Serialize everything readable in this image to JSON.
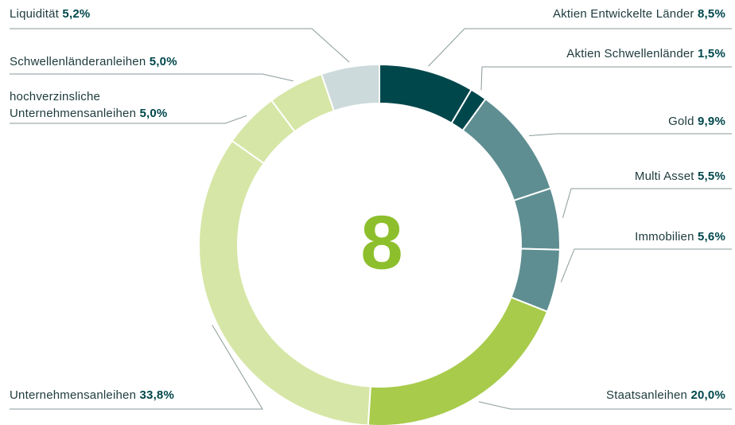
{
  "chart_data": {
    "type": "donut",
    "center_label": "8",
    "categories": [
      "Aktien Entwickelte Länder",
      "Aktien Schwellenländer",
      "Gold",
      "Multi Asset",
      "Immobilien",
      "Staatsanleihen",
      "Unternehmensanleihen",
      "hochverzinsliche Unternehmensanleihen",
      "Schwellenländeranleihen",
      "Liquidität"
    ],
    "values": [
      8.5,
      1.5,
      9.9,
      5.5,
      5.6,
      20.0,
      33.8,
      5.0,
      5.0,
      5.2
    ],
    "value_labels": [
      "8,5%",
      "1,5%",
      "9,9%",
      "5,5%",
      "5,6%",
      "20,0%",
      "33,8%",
      "5,0%",
      "5,0%",
      "5,2%"
    ],
    "colors": [
      "#00474c",
      "#00474c",
      "#5e8e91",
      "#5e8e91",
      "#5e8e91",
      "#a8cb4b",
      "#d6e6a6",
      "#d6e6a6",
      "#d6e6a6",
      "#cddadb"
    ]
  }
}
